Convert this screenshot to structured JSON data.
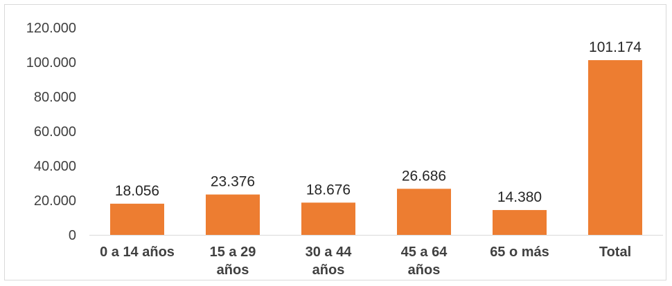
{
  "chart_data": {
    "type": "bar",
    "categories": [
      [
        "0 a 14 años"
      ],
      [
        "15 a 29",
        "años"
      ],
      [
        "30 a 44",
        "años"
      ],
      [
        "45 a 64",
        "años"
      ],
      [
        "65 o más"
      ],
      [
        "Total"
      ]
    ],
    "values": [
      18056,
      23376,
      18676,
      26686,
      14380,
      101174
    ],
    "data_labels": [
      "18.056",
      "23.376",
      "18.676",
      "26.686",
      "14.380",
      "101.174"
    ],
    "yticks": [
      0,
      20000,
      40000,
      60000,
      80000,
      100000,
      120000
    ],
    "ytick_labels": [
      "0",
      "20.000",
      "40.000",
      "60.000",
      "80.000",
      "100.000",
      "120.000"
    ],
    "ylim": [
      0,
      120000
    ],
    "grid": false,
    "legend": "none",
    "title": "",
    "xlabel": "",
    "ylabel": "",
    "colors": {
      "bar": "#ED7D31",
      "axis": "#d9d9d9"
    }
  }
}
